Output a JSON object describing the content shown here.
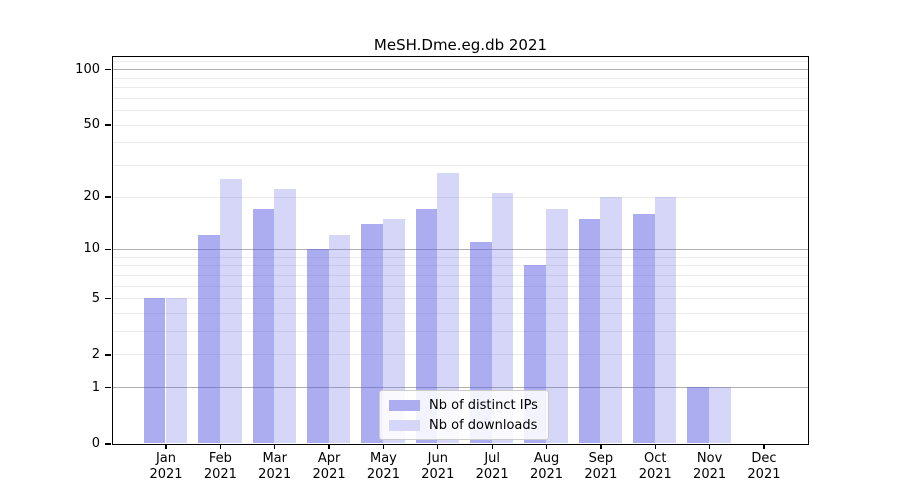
{
  "chart_data": {
    "type": "bar",
    "title": "MeSH.Dme.eg.db 2021",
    "categories": [
      "Jan",
      "Feb",
      "Mar",
      "Apr",
      "May",
      "Jun",
      "Jul",
      "Aug",
      "Sep",
      "Oct",
      "Nov",
      "Dec"
    ],
    "year_label": "2021",
    "series": [
      {
        "name": "Nb of distinct IPs",
        "color": "#5a5ae2",
        "alpha": 0.5,
        "fill": "#acacf0",
        "values": [
          5,
          12,
          17,
          10,
          14,
          17,
          11,
          8,
          15,
          16,
          1,
          0
        ]
      },
      {
        "name": "Nb of downloads",
        "color": "#5a5ae2",
        "alpha": 0.25,
        "fill": "#d6d6f8",
        "values": [
          5,
          25,
          22,
          12,
          15,
          27,
          21,
          17,
          20,
          20,
          1,
          0
        ]
      }
    ],
    "yscale": "log1p",
    "ylim": [
      0,
      117
    ],
    "yticks": [
      {
        "value": 0,
        "label": "0"
      },
      {
        "value": 1,
        "label": "1"
      },
      {
        "value": 2,
        "label": "2"
      },
      {
        "value": 5,
        "label": "5"
      },
      {
        "value": 10,
        "label": "10"
      },
      {
        "value": 20,
        "label": "20"
      },
      {
        "value": 50,
        "label": "50"
      },
      {
        "value": 100,
        "label": "100"
      }
    ],
    "major_gridlines": [
      1,
      10,
      100
    ],
    "minor_gridlines": [
      2,
      3,
      4,
      5,
      6,
      7,
      8,
      9,
      20,
      30,
      40,
      50,
      60,
      70,
      80,
      90,
      110
    ],
    "grid_major_color": "#b0b0b0",
    "grid_minor_color": "#ebebeb",
    "legend_position": "lower center",
    "xlabel": "",
    "ylabel": ""
  }
}
